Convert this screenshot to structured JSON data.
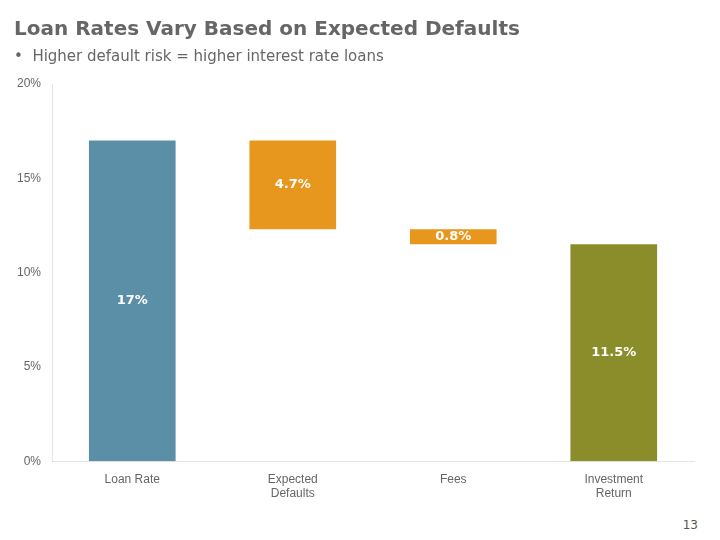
{
  "chart_data": {
    "type": "bar",
    "title": "Loan Rates Vary Based on Expected Defaults",
    "subtitle": "•  Higher default risk = higher interest rate loans",
    "categories": [
      "Loan Rate",
      "Expected\nDefaults",
      "Fees",
      "Investment\nReturn"
    ],
    "values": [
      17.0,
      4.7,
      0.8,
      11.5
    ],
    "bottoms": [
      0,
      12.3,
      11.5,
      0
    ],
    "colors": [
      "#5b8fa8",
      "#e8971e",
      "#e8971e",
      "#8b8c2a"
    ],
    "data_labels": true,
    "value_labels": [
      "17%",
      "4.7%",
      "0.8%",
      "11.5%"
    ],
    "ylim": [
      0,
      20
    ],
    "yticks": [
      {
        "value": 0,
        "label": "0%"
      },
      {
        "value": 5,
        "label": "5%"
      },
      {
        "value": 10,
        "label": "10%"
      },
      {
        "value": 15,
        "label": "15%"
      },
      {
        "value": 20,
        "label": "20%"
      }
    ],
    "grid": false,
    "annotations": [
      "13"
    ]
  }
}
